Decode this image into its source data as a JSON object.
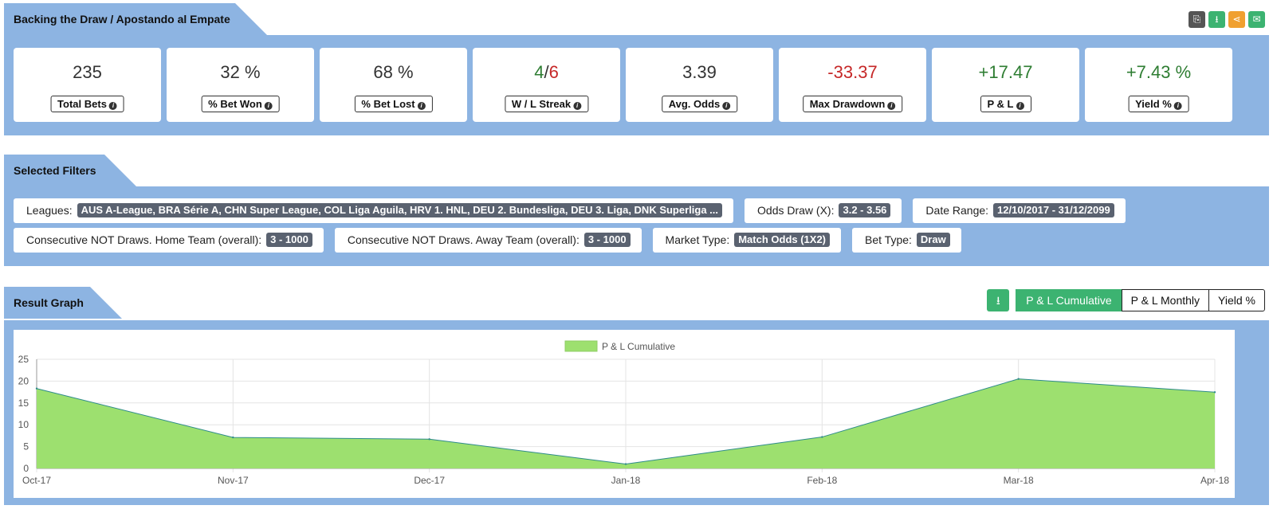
{
  "stats_section": {
    "title": "Backing the Draw / Apostando al Empate",
    "icons": [
      {
        "name": "copy-icon",
        "glyph": "⎘",
        "color": "#555555"
      },
      {
        "name": "download-icon",
        "glyph": "⭳",
        "color": "#3cb371"
      },
      {
        "name": "share-icon",
        "glyph": "⋖",
        "color": "#f0a030"
      },
      {
        "name": "email-icon",
        "glyph": "✉",
        "color": "#3cb371"
      }
    ],
    "stats": [
      {
        "value": "235",
        "label": "Total Bets"
      },
      {
        "value": "32 %",
        "label": "% Bet Won"
      },
      {
        "value": "68 %",
        "label": "% Bet Lost"
      },
      {
        "value_won": "4",
        "value_sep": "/",
        "value_lost": "6",
        "label": "W / L Streak"
      },
      {
        "value": "3.39",
        "label": "Avg. Odds"
      },
      {
        "value": "-33.37",
        "label": "Max Drawdown"
      },
      {
        "value": "+17.47",
        "label": "P & L"
      },
      {
        "value": "+7.43 %",
        "label": "Yield %"
      }
    ]
  },
  "filters_section": {
    "title": "Selected Filters",
    "row1": [
      {
        "label": "Leagues:",
        "value": "AUS A-League, BRA Série A, CHN Super League, COL Liga Aguila, HRV 1. HNL, DEU 2. Bundesliga, DEU 3. Liga, DNK Superliga ..."
      },
      {
        "label": "Odds Draw (X):",
        "value": "3.2 - 3.56"
      },
      {
        "label": "Date Range:",
        "value": "12/10/2017 - 31/12/2099"
      }
    ],
    "row2": [
      {
        "label": "Consecutive NOT Draws. Home Team (overall):",
        "value": "3 - 1000"
      },
      {
        "label": "Consecutive NOT Draws. Away Team (overall):",
        "value": "3 - 1000"
      },
      {
        "label": "Market Type:",
        "value": "Match Odds (1X2)"
      },
      {
        "label": "Bet Type:",
        "value": "Draw"
      }
    ]
  },
  "graph_section": {
    "title": "Result Graph",
    "download_glyph": "⭳",
    "toggles": [
      "P & L Cumulative",
      "P & L Monthly",
      "Yield %"
    ]
  },
  "chart_data": {
    "type": "area",
    "categories": [
      "Oct-17",
      "Nov-17",
      "Dec-17",
      "Jan-18",
      "Feb-18",
      "Mar-18",
      "Apr-18"
    ],
    "series": [
      {
        "name": "P & L Cumulative",
        "values": [
          18.3,
          7.1,
          6.7,
          1.0,
          7.2,
          20.5,
          17.47
        ]
      }
    ],
    "ylim": [
      0,
      25
    ],
    "yticks": [
      0,
      5,
      10,
      15,
      20,
      25
    ],
    "legend": "top-center",
    "grid": true,
    "fill_color": "#9de06f",
    "line_color": "#2e8b8b"
  }
}
